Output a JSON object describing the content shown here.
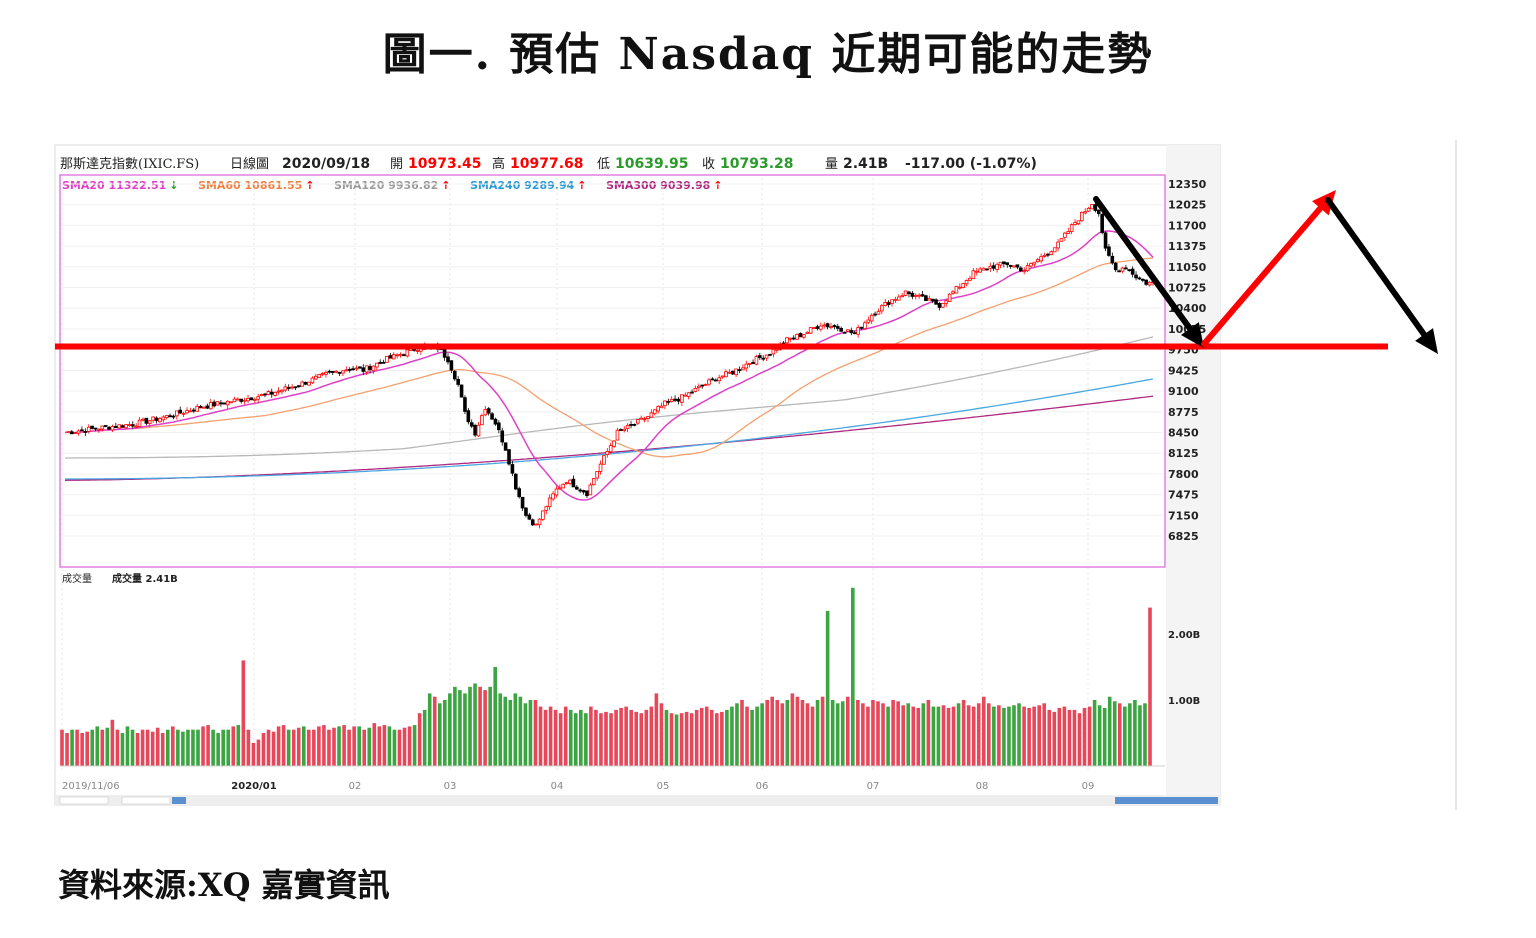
{
  "title": "圖一. 預估 Nasdaq 近期可能的走勢",
  "source": "資料來源:XQ 嘉實資訊",
  "colors": {
    "up": "#ff0000",
    "down": "#000000",
    "volUp": "#e8475a",
    "volDown": "#3aa541",
    "sma20": "#e040c8",
    "sma60": "#f4a070",
    "sma120": "#b8b8b8",
    "sma240": "#4aa8e0",
    "sma300": "#b02880",
    "frame": "#e080e0",
    "projection_up": "#ff0000",
    "projection_down": "#000000",
    "support": "#ff0000"
  },
  "header": {
    "name": "那斯達克指數(IXIC.FS)",
    "period": "日線圖",
    "date": "2020/09/18",
    "open_label": "開",
    "open": "10973.45",
    "high_label": "高",
    "high": "10977.68",
    "low_label": "低",
    "low": "10639.95",
    "close_label": "收",
    "close": "10793.28",
    "vol_label": "量",
    "vol": "2.41B",
    "change": "-117.00 (-1.07%)"
  },
  "sma_labels": [
    {
      "text": "SMA20 11322.51",
      "arrow": "↓",
      "color": "#e040c8",
      "arrowColor": "#2a9a2a"
    },
    {
      "text": "SMA60 10861.55",
      "arrow": "↑",
      "color": "#f08040",
      "arrowColor": "#ff0000"
    },
    {
      "text": "SMA120 9936.82",
      "arrow": "↑",
      "color": "#9a9a9a",
      "arrowColor": "#ff0000"
    },
    {
      "text": "SMA240 9289.94",
      "arrow": "↑",
      "color": "#2a9ad8",
      "arrowColor": "#ff0000"
    },
    {
      "text": "SMA300 9039.98",
      "arrow": "↑",
      "color": "#b02880",
      "arrowColor": "#ff0000"
    }
  ],
  "volume_label": "成交量",
  "volume_value_label": "成交量 2.41B",
  "chart_data": {
    "type": "candlestick",
    "x_ticks": [
      "2019/11/06",
      "2020/01",
      "02",
      "03",
      "04",
      "05",
      "06",
      "07",
      "08",
      "09"
    ],
    "price_ticks": [
      12350,
      12025,
      11700,
      11375,
      11050,
      10725,
      10400,
      10075,
      9750,
      9425,
      9100,
      8775,
      8450,
      8125,
      7800,
      7475,
      7150,
      6825
    ],
    "price_ylim": [
      6500,
      12500
    ],
    "volume_ticks": [
      "1.00B",
      "2.00B"
    ],
    "volume_ylim": [
      0,
      2.7
    ],
    "support_level": 9800,
    "price_path": [
      [
        0,
        8450
      ],
      [
        10,
        8520
      ],
      [
        20,
        8580
      ],
      [
        30,
        8700
      ],
      [
        40,
        8850
      ],
      [
        50,
        8950
      ],
      [
        60,
        9050
      ],
      [
        70,
        9220
      ],
      [
        78,
        9380
      ],
      [
        84,
        9460
      ],
      [
        88,
        9430
      ],
      [
        94,
        9580
      ],
      [
        100,
        9700
      ],
      [
        105,
        9800
      ],
      [
        110,
        9780
      ],
      [
        113,
        9600
      ],
      [
        116,
        9200
      ],
      [
        118,
        8750
      ],
      [
        121,
        8450
      ],
      [
        124,
        8850
      ],
      [
        127,
        8600
      ],
      [
        130,
        8200
      ],
      [
        133,
        7600
      ],
      [
        136,
        7150
      ],
      [
        139,
        6990
      ],
      [
        142,
        7300
      ],
      [
        145,
        7550
      ],
      [
        148,
        7700
      ],
      [
        151,
        7600
      ],
      [
        154,
        7500
      ],
      [
        157,
        7850
      ],
      [
        160,
        8150
      ],
      [
        163,
        8450
      ],
      [
        167,
        8550
      ],
      [
        172,
        8700
      ],
      [
        177,
        8900
      ],
      [
        182,
        9000
      ],
      [
        187,
        9150
      ],
      [
        192,
        9300
      ],
      [
        197,
        9400
      ],
      [
        202,
        9550
      ],
      [
        208,
        9700
      ],
      [
        213,
        9900
      ],
      [
        218,
        10000
      ],
      [
        223,
        10150
      ],
      [
        228,
        10100
      ],
      [
        233,
        10000
      ],
      [
        238,
        10300
      ],
      [
        243,
        10500
      ],
      [
        248,
        10650
      ],
      [
        253,
        10550
      ],
      [
        258,
        10450
      ],
      [
        263,
        10700
      ],
      [
        268,
        10950
      ],
      [
        273,
        11050
      ],
      [
        278,
        11100
      ],
      [
        283,
        11000
      ],
      [
        288,
        11200
      ],
      [
        293,
        11400
      ],
      [
        298,
        11750
      ],
      [
        303,
        12050
      ],
      [
        305,
        11900
      ],
      [
        307,
        11300
      ],
      [
        310,
        11000
      ],
      [
        313,
        11050
      ],
      [
        316,
        10900
      ],
      [
        319,
        10800
      ]
    ],
    "volume": [
      0.55,
      0.5,
      0.55,
      0.55,
      0.5,
      0.52,
      0.55,
      0.6,
      0.55,
      0.58,
      0.7,
      0.55,
      0.5,
      0.6,
      0.55,
      0.5,
      0.55,
      0.55,
      0.52,
      0.58,
      0.5,
      0.55,
      0.6,
      0.55,
      0.52,
      0.55,
      0.55,
      0.55,
      0.6,
      0.62,
      0.55,
      0.5,
      0.55,
      0.55,
      0.6,
      0.62,
      1.6,
      0.55,
      0.35,
      0.4,
      0.5,
      0.55,
      0.52,
      0.6,
      0.62,
      0.55,
      0.55,
      0.58,
      0.6,
      0.55,
      0.55,
      0.6,
      0.62,
      0.55,
      0.58,
      0.6,
      0.62,
      0.55,
      0.6,
      0.6,
      0.55,
      0.58,
      0.65,
      0.6,
      0.62,
      0.6,
      0.55,
      0.55,
      0.58,
      0.6,
      0.62,
      0.8,
      0.85,
      1.1,
      1.05,
      0.95,
      1.0,
      1.1,
      1.2,
      1.15,
      1.1,
      1.2,
      1.25,
      1.2,
      1.15,
      1.2,
      1.5,
      1.1,
      1.05,
      1.0,
      1.1,
      1.05,
      0.95,
      1.0,
      1.0,
      0.9,
      0.85,
      0.9,
      0.85,
      0.8,
      0.9,
      0.85,
      0.8,
      0.85,
      0.8,
      0.9,
      0.85,
      0.8,
      0.82,
      0.8,
      0.85,
      0.88,
      0.9,
      0.85,
      0.82,
      0.8,
      0.85,
      0.9,
      1.1,
      0.95,
      0.85,
      0.8,
      0.78,
      0.8,
      0.82,
      0.8,
      0.85,
      0.88,
      0.9,
      0.85,
      0.8,
      0.82,
      0.85,
      0.9,
      0.95,
      1.0,
      0.9,
      0.85,
      0.9,
      0.95,
      1.0,
      1.05,
      1.0,
      0.95,
      1.0,
      1.1,
      1.05,
      1.0,
      0.95,
      0.9,
      1.0,
      1.05,
      2.35,
      1.0,
      0.95,
      0.98,
      1.05,
      2.7,
      1.0,
      0.95,
      0.9,
      1.0,
      0.98,
      0.95,
      0.9,
      1.0,
      0.98,
      0.92,
      0.95,
      0.9,
      0.88,
      0.95,
      1.0,
      0.9,
      0.9,
      0.92,
      0.88,
      0.9,
      0.95,
      1.0,
      0.92,
      0.9,
      0.95,
      1.05,
      0.95,
      0.9,
      0.92,
      0.88,
      0.9,
      0.92,
      0.95,
      0.9,
      0.88,
      0.9,
      0.92,
      0.95,
      0.85,
      0.82,
      0.88,
      0.9,
      0.85,
      0.85,
      0.8,
      0.88,
      0.9,
      1.0,
      0.92,
      0.88,
      1.05,
      0.98,
      0.95,
      0.9,
      0.95,
      1.0,
      0.92,
      0.95,
      2.4
    ]
  },
  "projection": {
    "support_price": 9800,
    "path": [
      "down",
      "up",
      "down"
    ]
  }
}
